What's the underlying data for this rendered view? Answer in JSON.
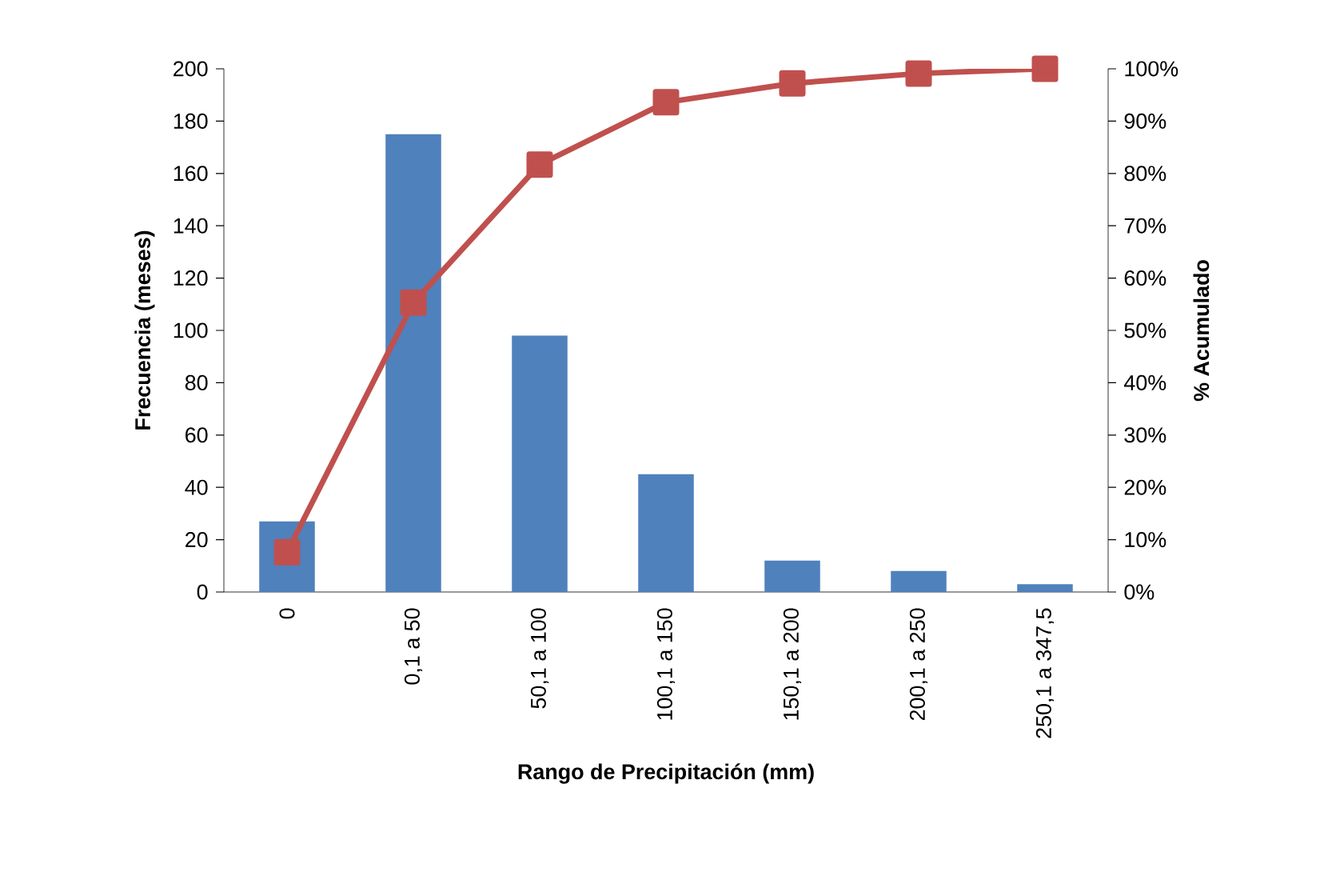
{
  "chart_data": {
    "type": "bar",
    "xlabel": "Rango de Precipitación (mm)",
    "ylabel": "Frecuencia (meses)",
    "y2label": "% Acumulado",
    "categories": [
      "0",
      "0,1 a 50",
      "50,1 a 100",
      "100,1 a 150",
      "150,1 a 200",
      "200,1 a 250",
      "250,1 a 347,5"
    ],
    "series": [
      {
        "color": "#4f81bd",
        "values": [
          27,
          175,
          98,
          45,
          12,
          8,
          3
        ]
      },
      {
        "type": "line",
        "axis": "y2",
        "marker": "square",
        "color": "#c0504d",
        "values": [
          7.6,
          55.3,
          81.7,
          93.6,
          97.2,
          99.1,
          100
        ]
      }
    ],
    "ylim": [
      0,
      200
    ],
    "yticks": [
      0,
      20,
      40,
      60,
      80,
      100,
      120,
      140,
      160,
      180,
      200
    ],
    "y2lim": [
      0,
      100
    ],
    "y2ticks": [
      {
        "value": 0,
        "label": "0%"
      },
      {
        "value": 10,
        "label": "10%"
      },
      {
        "value": 20,
        "label": "20%"
      },
      {
        "value": 30,
        "label": "30%"
      },
      {
        "value": 40,
        "label": "40%"
      },
      {
        "value": 50,
        "label": "50%"
      },
      {
        "value": 60,
        "label": "60%"
      },
      {
        "value": 70,
        "label": "70%"
      },
      {
        "value": 80,
        "label": "80%"
      },
      {
        "value": 90,
        "label": "90%"
      },
      {
        "value": 100,
        "label": "100%"
      }
    ]
  }
}
